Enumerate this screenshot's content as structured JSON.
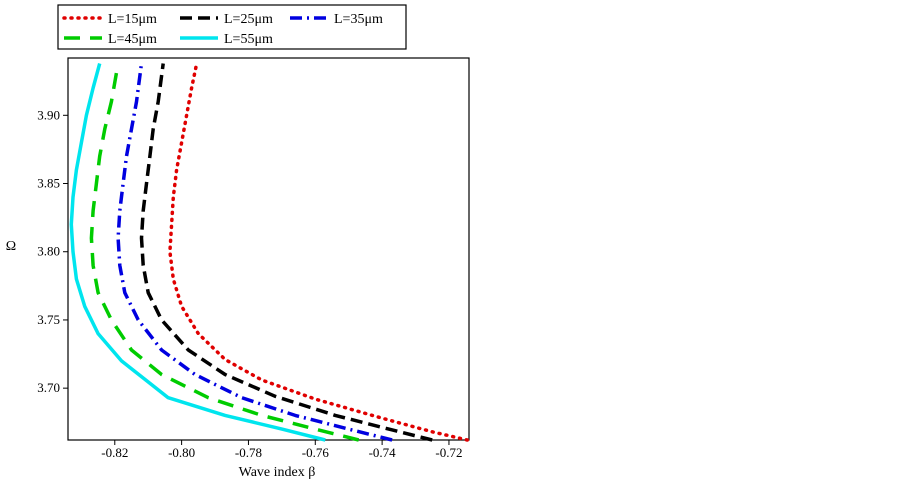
{
  "chart_data": {
    "type": "line",
    "title": "",
    "xlabel": "Wave index β",
    "ylabel": "Ω",
    "xlim": [
      -0.834,
      -0.714
    ],
    "ylim": [
      3.662,
      3.942
    ],
    "x_ticks": [
      -0.82,
      -0.8,
      -0.78,
      -0.76,
      -0.74,
      -0.72
    ],
    "x_tick_labels": [
      "-0.82",
      "-0.80",
      "-0.78",
      "-0.76",
      "-0.74",
      "-0.72"
    ],
    "y_ticks": [
      3.7,
      3.75,
      3.8,
      3.85,
      3.9
    ],
    "y_tick_labels": [
      "3.70",
      "3.75",
      "3.80",
      "3.85",
      "3.90"
    ],
    "grid": false,
    "legend_position": "top",
    "series": [
      {
        "name": "L=15μm",
        "color": "#e00000",
        "dash": "dotted",
        "points": [
          [
            -0.7145,
            3.662
          ],
          [
            -0.725,
            3.668
          ],
          [
            -0.74,
            3.678
          ],
          [
            -0.76,
            3.692
          ],
          [
            -0.776,
            3.706
          ],
          [
            -0.787,
            3.721
          ],
          [
            -0.795,
            3.74
          ],
          [
            -0.8,
            3.76
          ],
          [
            -0.8025,
            3.78
          ],
          [
            -0.8035,
            3.8
          ],
          [
            -0.803,
            3.82
          ],
          [
            -0.8025,
            3.84
          ],
          [
            -0.8015,
            3.86
          ],
          [
            -0.8,
            3.88
          ],
          [
            -0.7985,
            3.9
          ],
          [
            -0.797,
            3.92
          ],
          [
            -0.7955,
            3.938
          ]
        ]
      },
      {
        "name": "L=25μm",
        "color": "#000000",
        "dash": "dash",
        "points": [
          [
            -0.725,
            3.662
          ],
          [
            -0.738,
            3.67
          ],
          [
            -0.754,
            3.68
          ],
          [
            -0.772,
            3.694
          ],
          [
            -0.787,
            3.71
          ],
          [
            -0.798,
            3.728
          ],
          [
            -0.806,
            3.75
          ],
          [
            -0.81,
            3.77
          ],
          [
            -0.8115,
            3.79
          ],
          [
            -0.812,
            3.81
          ],
          [
            -0.8115,
            3.83
          ],
          [
            -0.8105,
            3.85
          ],
          [
            -0.8095,
            3.87
          ],
          [
            -0.8085,
            3.89
          ],
          [
            -0.807,
            3.91
          ],
          [
            -0.8055,
            3.938
          ]
        ]
      },
      {
        "name": "L=35μm",
        "color": "#0000e0",
        "dash": "dashdot",
        "points": [
          [
            -0.737,
            3.662
          ],
          [
            -0.75,
            3.67
          ],
          [
            -0.766,
            3.68
          ],
          [
            -0.782,
            3.693
          ],
          [
            -0.796,
            3.71
          ],
          [
            -0.806,
            3.728
          ],
          [
            -0.813,
            3.75
          ],
          [
            -0.817,
            3.77
          ],
          [
            -0.8185,
            3.79
          ],
          [
            -0.819,
            3.81
          ],
          [
            -0.8185,
            3.83
          ],
          [
            -0.8175,
            3.85
          ],
          [
            -0.8165,
            3.87
          ],
          [
            -0.815,
            3.89
          ],
          [
            -0.8135,
            3.91
          ],
          [
            -0.812,
            3.938
          ]
        ]
      },
      {
        "name": "L=45μm",
        "color": "#00cc00",
        "dash": "longdash",
        "points": [
          [
            -0.747,
            3.662
          ],
          [
            -0.76,
            3.67
          ],
          [
            -0.776,
            3.68
          ],
          [
            -0.792,
            3.693
          ],
          [
            -0.806,
            3.71
          ],
          [
            -0.815,
            3.728
          ],
          [
            -0.821,
            3.75
          ],
          [
            -0.825,
            3.77
          ],
          [
            -0.8265,
            3.79
          ],
          [
            -0.827,
            3.81
          ],
          [
            -0.8265,
            3.83
          ],
          [
            -0.8255,
            3.85
          ],
          [
            -0.8245,
            3.87
          ],
          [
            -0.823,
            3.89
          ],
          [
            -0.821,
            3.91
          ],
          [
            -0.819,
            3.938
          ]
        ]
      },
      {
        "name": "L=55μm",
        "color": "#00e5ee",
        "dash": "solid",
        "points": [
          [
            -0.757,
            3.662
          ],
          [
            -0.77,
            3.67
          ],
          [
            -0.787,
            3.68
          ],
          [
            -0.804,
            3.693
          ],
          [
            -0.818,
            3.72
          ],
          [
            -0.825,
            3.74
          ],
          [
            -0.829,
            3.76
          ],
          [
            -0.8315,
            3.78
          ],
          [
            -0.8325,
            3.8
          ],
          [
            -0.833,
            3.82
          ],
          [
            -0.8325,
            3.84
          ],
          [
            -0.8315,
            3.86
          ],
          [
            -0.83,
            3.88
          ],
          [
            -0.8285,
            3.9
          ],
          [
            -0.8265,
            3.92
          ],
          [
            -0.8245,
            3.938
          ]
        ]
      }
    ]
  }
}
